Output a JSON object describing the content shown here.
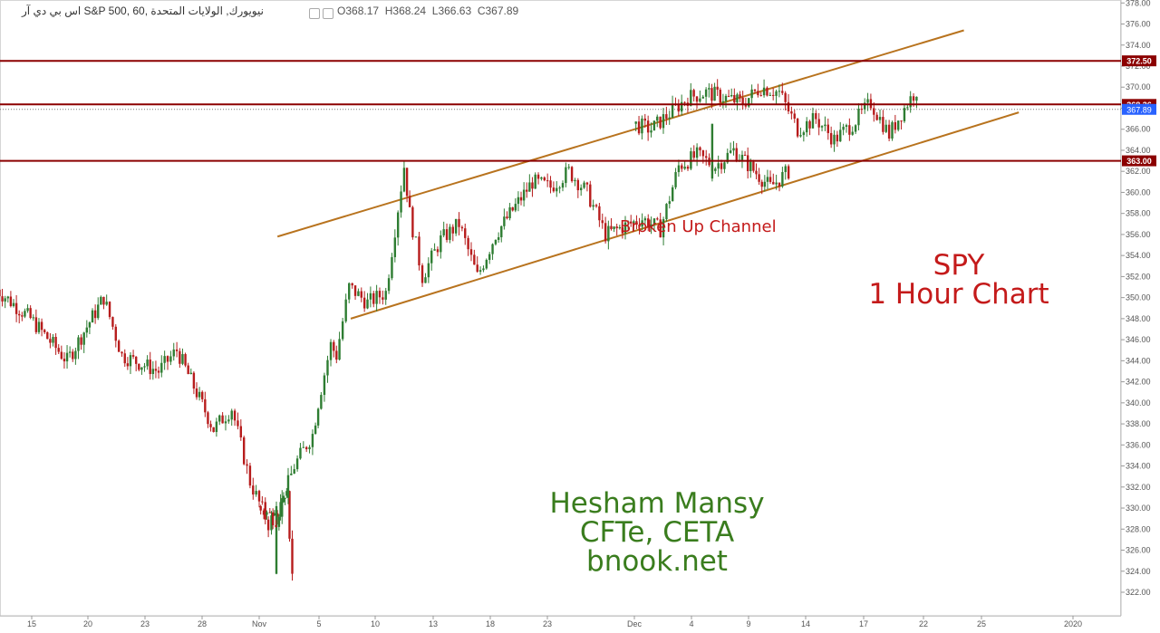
{
  "header": {
    "symbol_text": "اس بي دي آر S&P 500, 60, نيويورك, الولايات المتحدة",
    "open_label": "O",
    "open_value": "368.17",
    "high_label": "H",
    "high_value": "368.24",
    "low_label": "L",
    "low_value": "366.63",
    "close_label": "C",
    "close_value": "367.89"
  },
  "annotations": {
    "title_line1": "SPY",
    "title_line2": "1 Hour Chart",
    "channel_label": "Broken Up Channel",
    "author_line1": "Hesham Mansy",
    "author_line2": "CFTe, CETA",
    "author_line3": "bnook.net"
  },
  "colors": {
    "up": "#2e7d32",
    "down": "#b71c1c",
    "level_line": "#8b0000",
    "channel_line": "#b8731e",
    "last_price_badge": "#2962ff",
    "title_text": "#c41a1a",
    "signature_text": "#3a7d1e"
  },
  "chart_data": {
    "type": "candlestick",
    "ylim": [
      321,
      378
    ],
    "y_ticks": [
      "322.00",
      "324.00",
      "326.00",
      "328.00",
      "330.00",
      "332.00",
      "334.00",
      "336.00",
      "338.00",
      "340.00",
      "342.00",
      "344.00",
      "346.00",
      "348.00",
      "350.00",
      "352.00",
      "354.00",
      "356.00",
      "358.00",
      "360.00",
      "362.00",
      "364.00",
      "366.00",
      "368.00",
      "370.00",
      "372.00",
      "374.00",
      "376.00",
      "378.00"
    ],
    "x_ticks": [
      "15",
      "20",
      "23",
      "28",
      "Nov",
      "5",
      "10",
      "13",
      "18",
      "23",
      "Dec",
      "4",
      "9",
      "14",
      "17",
      "22",
      "25",
      "2020"
    ],
    "horizontal_levels": [
      {
        "value": 372.5,
        "label": "372.50"
      },
      {
        "value": 368.36,
        "label": "368.36"
      },
      {
        "value": 363.0,
        "label": "363.00"
      }
    ],
    "last_price": {
      "value": 367.89,
      "label": "367.89"
    },
    "channel": {
      "upper": [
        {
          "date": "Nov 2",
          "price": 355.8
        },
        {
          "date": "Dec 19",
          "price": 375.4
        }
      ],
      "lower": [
        {
          "date": "Nov 6",
          "price": 348.0
        },
        {
          "date": "Dec 22",
          "price": 367.6
        }
      ]
    },
    "price_path": [
      {
        "t": "Oct 14",
        "price": 351.0
      },
      {
        "t": "Oct 16",
        "price": 348.0
      },
      {
        "t": "Oct 18",
        "price": 344.0
      },
      {
        "t": "Oct 20",
        "price": 350.0
      },
      {
        "t": "Oct 21",
        "price": 344.5
      },
      {
        "t": "Oct 23",
        "price": 343.0
      },
      {
        "t": "Oct 24",
        "price": 345.0
      },
      {
        "t": "Oct 26",
        "price": 337.5
      },
      {
        "t": "Oct 27",
        "price": 339.5
      },
      {
        "t": "Oct 28",
        "price": 332.5
      },
      {
        "t": "Oct 29",
        "price": 328.5
      },
      {
        "t": "Oct 30",
        "price": 331.0
      },
      {
        "t": "Oct 30 PM",
        "price": 324.0
      },
      {
        "t": "Nov 1",
        "price": 330.0
      },
      {
        "t": "Nov 2",
        "price": 329.0
      },
      {
        "t": "Nov 3",
        "price": 334.0
      },
      {
        "t": "Nov 4",
        "price": 337.0
      },
      {
        "t": "Nov 4 PM",
        "price": 340.0
      },
      {
        "t": "Nov 5",
        "price": 345.5
      },
      {
        "t": "Nov 5 PM",
        "price": 344.5
      },
      {
        "t": "Nov 6",
        "price": 351.0
      },
      {
        "t": "Nov 7",
        "price": 349.5
      },
      {
        "t": "Nov 8",
        "price": 350.5
      },
      {
        "t": "Nov 9",
        "price": 362.5
      },
      {
        "t": "Nov 9 PM",
        "price": 358.0
      },
      {
        "t": "Nov 10",
        "price": 352.0
      },
      {
        "t": "Nov 11",
        "price": 355.5
      },
      {
        "t": "Nov 12",
        "price": 357.0
      },
      {
        "t": "Nov 13",
        "price": 352.0
      },
      {
        "t": "Nov 14",
        "price": 356.0
      },
      {
        "t": "Nov 16",
        "price": 361.0
      },
      {
        "t": "Nov 17",
        "price": 360.5
      },
      {
        "t": "Nov 18",
        "price": 362.0
      },
      {
        "t": "Nov 19",
        "price": 360.0
      },
      {
        "t": "Nov 20",
        "price": 356.0
      },
      {
        "t": "Nov 22",
        "price": 357.5
      },
      {
        "t": "Nov 23",
        "price": 356.5
      },
      {
        "t": "Nov 24",
        "price": 362.5
      },
      {
        "t": "Nov 25",
        "price": 363.5
      },
      {
        "t": "Nov 26",
        "price": 362.5
      },
      {
        "t": "Nov 27",
        "price": 364.0
      },
      {
        "t": "Nov 29",
        "price": 360.5
      },
      {
        "t": "Nov 30",
        "price": 362.0
      },
      {
        "t": "Dec 1",
        "price": 366.5
      },
      {
        "t": "Dec 2",
        "price": 366.0
      },
      {
        "t": "Dec 3",
        "price": 367.5
      },
      {
        "t": "Dec 4",
        "price": 369.0
      },
      {
        "t": "Dec 5",
        "price": 369.5
      },
      {
        "t": "Dec 7",
        "price": 368.5
      },
      {
        "t": "Dec 8",
        "price": 370.0
      },
      {
        "t": "Dec 9",
        "price": 369.5
      },
      {
        "t": "Dec 10",
        "price": 366.0
      },
      {
        "t": "Dec 11",
        "price": 367.0
      },
      {
        "t": "Dec 12",
        "price": 365.0
      },
      {
        "t": "Dec 13",
        "price": 366.5
      },
      {
        "t": "Dec 14",
        "price": 368.5
      },
      {
        "t": "Dec 15",
        "price": 365.5
      },
      {
        "t": "Dec 16",
        "price": 368.5
      },
      {
        "t": "Dec 17",
        "price": 371.0
      },
      {
        "t": "Dec 18",
        "price": 372.0
      },
      {
        "t": "Dec 19",
        "price": 368.5
      },
      {
        "t": "Dec 20",
        "price": 364.0
      },
      {
        "t": "Dec 21",
        "price": 367.89
      }
    ]
  }
}
